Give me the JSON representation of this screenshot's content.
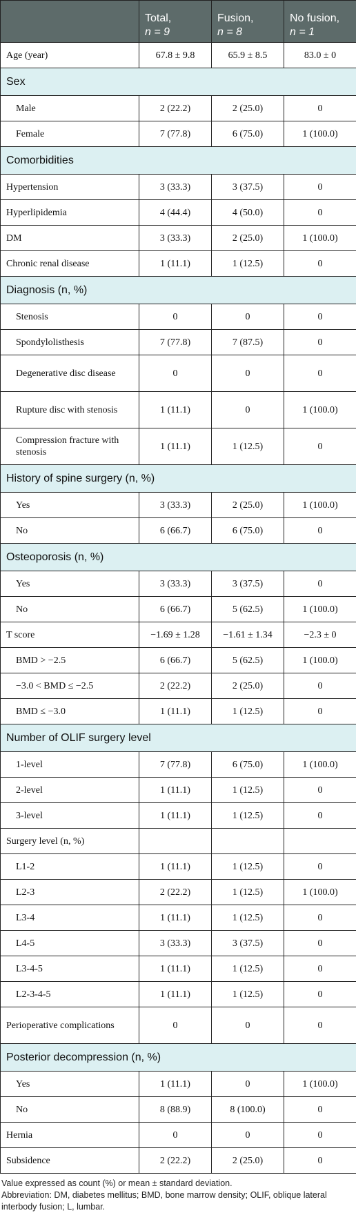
{
  "table": {
    "header": [
      {
        "line1": "",
        "line2": ""
      },
      {
        "line1": "Total,",
        "line2": "n = 9"
      },
      {
        "line1": "Fusion,",
        "line2": "n = 8"
      },
      {
        "line1": "No fusion,",
        "line2": "n = 1"
      }
    ],
    "rows": [
      {
        "label": "Age (year)",
        "values": [
          "67.8 ± 9.8",
          "65.9 ± 8.5",
          "83.0 ± 0"
        ]
      },
      {
        "section": "Sex"
      },
      {
        "item": "Male",
        "values": [
          "2 (22.2)",
          "2 (25.0)",
          "0"
        ]
      },
      {
        "item": "Female",
        "values": [
          "7 (77.8)",
          "6 (75.0)",
          "1 (100.0)"
        ]
      },
      {
        "section": "Comorbidities"
      },
      {
        "label": "Hypertension",
        "values": [
          "3 (33.3)",
          "3 (37.5)",
          "0"
        ]
      },
      {
        "label": "Hyperlipidemia",
        "values": [
          "4 (44.4)",
          "4 (50.0)",
          "0"
        ]
      },
      {
        "label": "DM",
        "values": [
          "3 (33.3)",
          "2 (25.0)",
          "1 (100.0)"
        ]
      },
      {
        "label": "Chronic renal disease",
        "values": [
          "1 (11.1)",
          "1 (12.5)",
          "0"
        ]
      },
      {
        "section": "Diagnosis (n, %)"
      },
      {
        "item": "Stenosis",
        "values": [
          "0",
          "0",
          "0"
        ]
      },
      {
        "item": "Spondylolisthesis",
        "values": [
          "7 (77.8)",
          "7 (87.5)",
          "0"
        ]
      },
      {
        "item": "Degenerative disc disease",
        "values": [
          "0",
          "0",
          "0"
        ]
      },
      {
        "item": "Rupture disc with stenosis",
        "values": [
          "1 (11.1)",
          "0",
          "1 (100.0)"
        ]
      },
      {
        "item": "Compression fracture with stenosis",
        "values": [
          "1 (11.1)",
          "1 (12.5)",
          "0"
        ]
      },
      {
        "section": "History of spine surgery (n, %)"
      },
      {
        "item": "Yes",
        "values": [
          "3 (33.3)",
          "2 (25.0)",
          "1 (100.0)"
        ]
      },
      {
        "item": "No",
        "values": [
          "6 (66.7)",
          "6 (75.0)",
          "0"
        ]
      },
      {
        "section": "Osteoporosis (n, %)"
      },
      {
        "item": "Yes",
        "values": [
          "3 (33.3)",
          "3 (37.5)",
          "0"
        ]
      },
      {
        "item": "No",
        "values": [
          "6 (66.7)",
          "5 (62.5)",
          "1 (100.0)"
        ]
      },
      {
        "label": "T score",
        "values": [
          "−1.69 ± 1.28",
          "−1.61 ± 1.34",
          "−2.3 ± 0"
        ]
      },
      {
        "item": "BMD > −2.5",
        "values": [
          "6 (66.7)",
          "5 (62.5)",
          "1 (100.0)"
        ]
      },
      {
        "item": "−3.0 < BMD ≤ −2.5",
        "values": [
          "2 (22.2)",
          "2 (25.0)",
          "0"
        ]
      },
      {
        "item": "BMD ≤ −3.0",
        "values": [
          "1 (11.1)",
          "1 (12.5)",
          "0"
        ]
      },
      {
        "section": "Number of OLIF surgery level"
      },
      {
        "item": "1-level",
        "values": [
          "7 (77.8)",
          "6 (75.0)",
          "1 (100.0)"
        ]
      },
      {
        "item": "2-level",
        "values": [
          "1 (11.1)",
          "1 (12.5)",
          "0"
        ]
      },
      {
        "item": "3-level",
        "values": [
          "1 (11.1)",
          "1 (12.5)",
          "0"
        ]
      },
      {
        "label": "Surgery level (n, %)",
        "values": []
      },
      {
        "item": "L1-2",
        "values": [
          "1 (11.1)",
          "1 (12.5)",
          "0"
        ]
      },
      {
        "item": "L2-3",
        "values": [
          "2 (22.2)",
          "1 (12.5)",
          "1 (100.0)"
        ]
      },
      {
        "item": "L3-4",
        "values": [
          "1 (11.1)",
          "1 (12.5)",
          "0"
        ]
      },
      {
        "item": "L4-5",
        "values": [
          "3 (33.3)",
          "3 (37.5)",
          "0"
        ]
      },
      {
        "item": "L3-4-5",
        "values": [
          "1 (11.1)",
          "1 (12.5)",
          "0"
        ]
      },
      {
        "item": "L2-3-4-5",
        "values": [
          "1 (11.1)",
          "1 (12.5)",
          "0"
        ]
      },
      {
        "label": "Perioperative complications",
        "values": [
          "0",
          "0",
          "0"
        ]
      },
      {
        "section": "Posterior decompression (n, %)"
      },
      {
        "item": "Yes",
        "values": [
          "1 (11.1)",
          "0",
          "1 (100.0)"
        ]
      },
      {
        "item": "No",
        "values": [
          "8 (88.9)",
          "8 (100.0)",
          "0"
        ]
      },
      {
        "label": "Hernia",
        "values": [
          "0",
          "0",
          "0"
        ]
      },
      {
        "label": "Subsidence",
        "values": [
          "2 (22.2)",
          "2 (25.0)",
          "0"
        ]
      }
    ]
  },
  "footnotes": [
    "Value expressed as count (%) or mean ± standard deviation.",
    "Abbreviation: DM, diabetes mellitus; BMD, bone marrow density; OLIF, oblique lateral interbody fusion; L, lumbar."
  ]
}
